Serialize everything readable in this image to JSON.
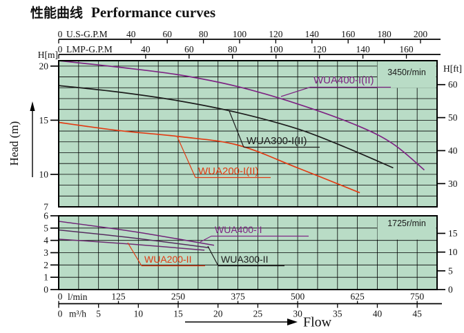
{
  "title": {
    "zh": "性能曲线",
    "en": "Performance curves"
  },
  "flow_label": "Flow",
  "axis_labels": {
    "head_m": "Head (m)",
    "h_m": "H[m]",
    "h_ft": "H[ft]"
  },
  "chart_data": {
    "type": "line",
    "title": "Performance curves",
    "x_domain_m3h": [
      0,
      47.5
    ],
    "x_grid_step_m3h": 2.5,
    "x_axes": [
      {
        "id": "usgpm",
        "title": "U.S-G.P.M",
        "ticks": [
          0,
          40,
          60,
          80,
          100,
          120,
          140,
          160,
          180,
          200
        ],
        "m3h_per_unit": 0.2271
      },
      {
        "id": "impgpm",
        "title": "LMP-G.P.M",
        "ticks": [
          0,
          40,
          60,
          80,
          100,
          120,
          140,
          160
        ],
        "m3h_per_unit": 0.2728
      },
      {
        "id": "lmin",
        "title": "l/min",
        "ticks": [
          0,
          125,
          250,
          375,
          500,
          625,
          750
        ],
        "m3h_per_unit": 0.06
      },
      {
        "id": "m3h",
        "title": "m³/h",
        "ticks": [
          0,
          5,
          10,
          15,
          20,
          25,
          30,
          35,
          40,
          45
        ],
        "m3h_per_unit": 1
      }
    ],
    "panels": [
      {
        "rpm": "3450r/min",
        "y_domain_m": [
          7,
          20.5
        ],
        "y_grid_step_m": 1,
        "left_ticks_m": [
          20,
          15,
          10
        ],
        "left_corner_label_m": 7,
        "right_ticks_ft": [
          60,
          50,
          40,
          30
        ],
        "series": [
          {
            "name": "WUA400-I(II)",
            "label_color": "#7e2483",
            "line_color": "#7e2483",
            "points_lmin_m": [
              [
                0,
                20.5
              ],
              [
                125,
                19.9
              ],
              [
                250,
                19.2
              ],
              [
                375,
                18.1
              ],
              [
                500,
                16.5
              ],
              [
                625,
                14.5
              ],
              [
                700,
                12.8
              ],
              [
                765,
                10.4
              ]
            ]
          },
          {
            "name": "WUA300-I(II)",
            "label_color": "#1c1c1c",
            "line_color": "#1c1c1c",
            "points_lmin_m": [
              [
                0,
                18.2
              ],
              [
                125,
                17.6
              ],
              [
                250,
                16.8
              ],
              [
                375,
                15.7
              ],
              [
                500,
                14.2
              ],
              [
                600,
                12.5
              ],
              [
                700,
                10.6
              ]
            ]
          },
          {
            "name": "WUA200-I(II)",
            "label_color": "#e23a12",
            "line_color": "#e23a12",
            "points_lmin_m": [
              [
                0,
                14.8
              ],
              [
                125,
                14.05
              ],
              [
                250,
                13.5
              ],
              [
                375,
                12.7
              ],
              [
                500,
                10.6
              ],
              [
                630,
                8.3
              ]
            ]
          }
        ]
      },
      {
        "rpm": "1725r/min",
        "y_domain_m": [
          0,
          6
        ],
        "y_grid_step_m": 1,
        "left_ticks_m": [
          6,
          5,
          4,
          3,
          2,
          1,
          0
        ],
        "left_corner_label_m": null,
        "right_ticks_ft": [
          15,
          10,
          5,
          0
        ],
        "series": [
          {
            "name": "WUA400-II",
            "label_color": "#7e2483",
            "line_color": "#702478",
            "points_lmin_m": [
              [
                0,
                5.55
              ],
              [
                160,
                4.7
              ],
              [
                325,
                3.6
              ]
            ]
          },
          {
            "name": "WUA300-II",
            "label_color": "#1c1c1c",
            "line_color": "#552a5e",
            "points_lmin_m": [
              [
                0,
                4.85
              ],
              [
                155,
                4.2
              ],
              [
                315,
                3.4
              ]
            ]
          },
          {
            "name": "WUA200-II",
            "label_color": "#e23a12",
            "line_color": "#6d2a70",
            "points_lmin_m": [
              [
                0,
                4.1
              ],
              [
                150,
                3.7
              ],
              [
                305,
                3.2
              ]
            ]
          }
        ]
      }
    ],
    "colors": {
      "panel_bg": "#b9dcc6",
      "grid": "#000000",
      "border": "#000000"
    }
  }
}
